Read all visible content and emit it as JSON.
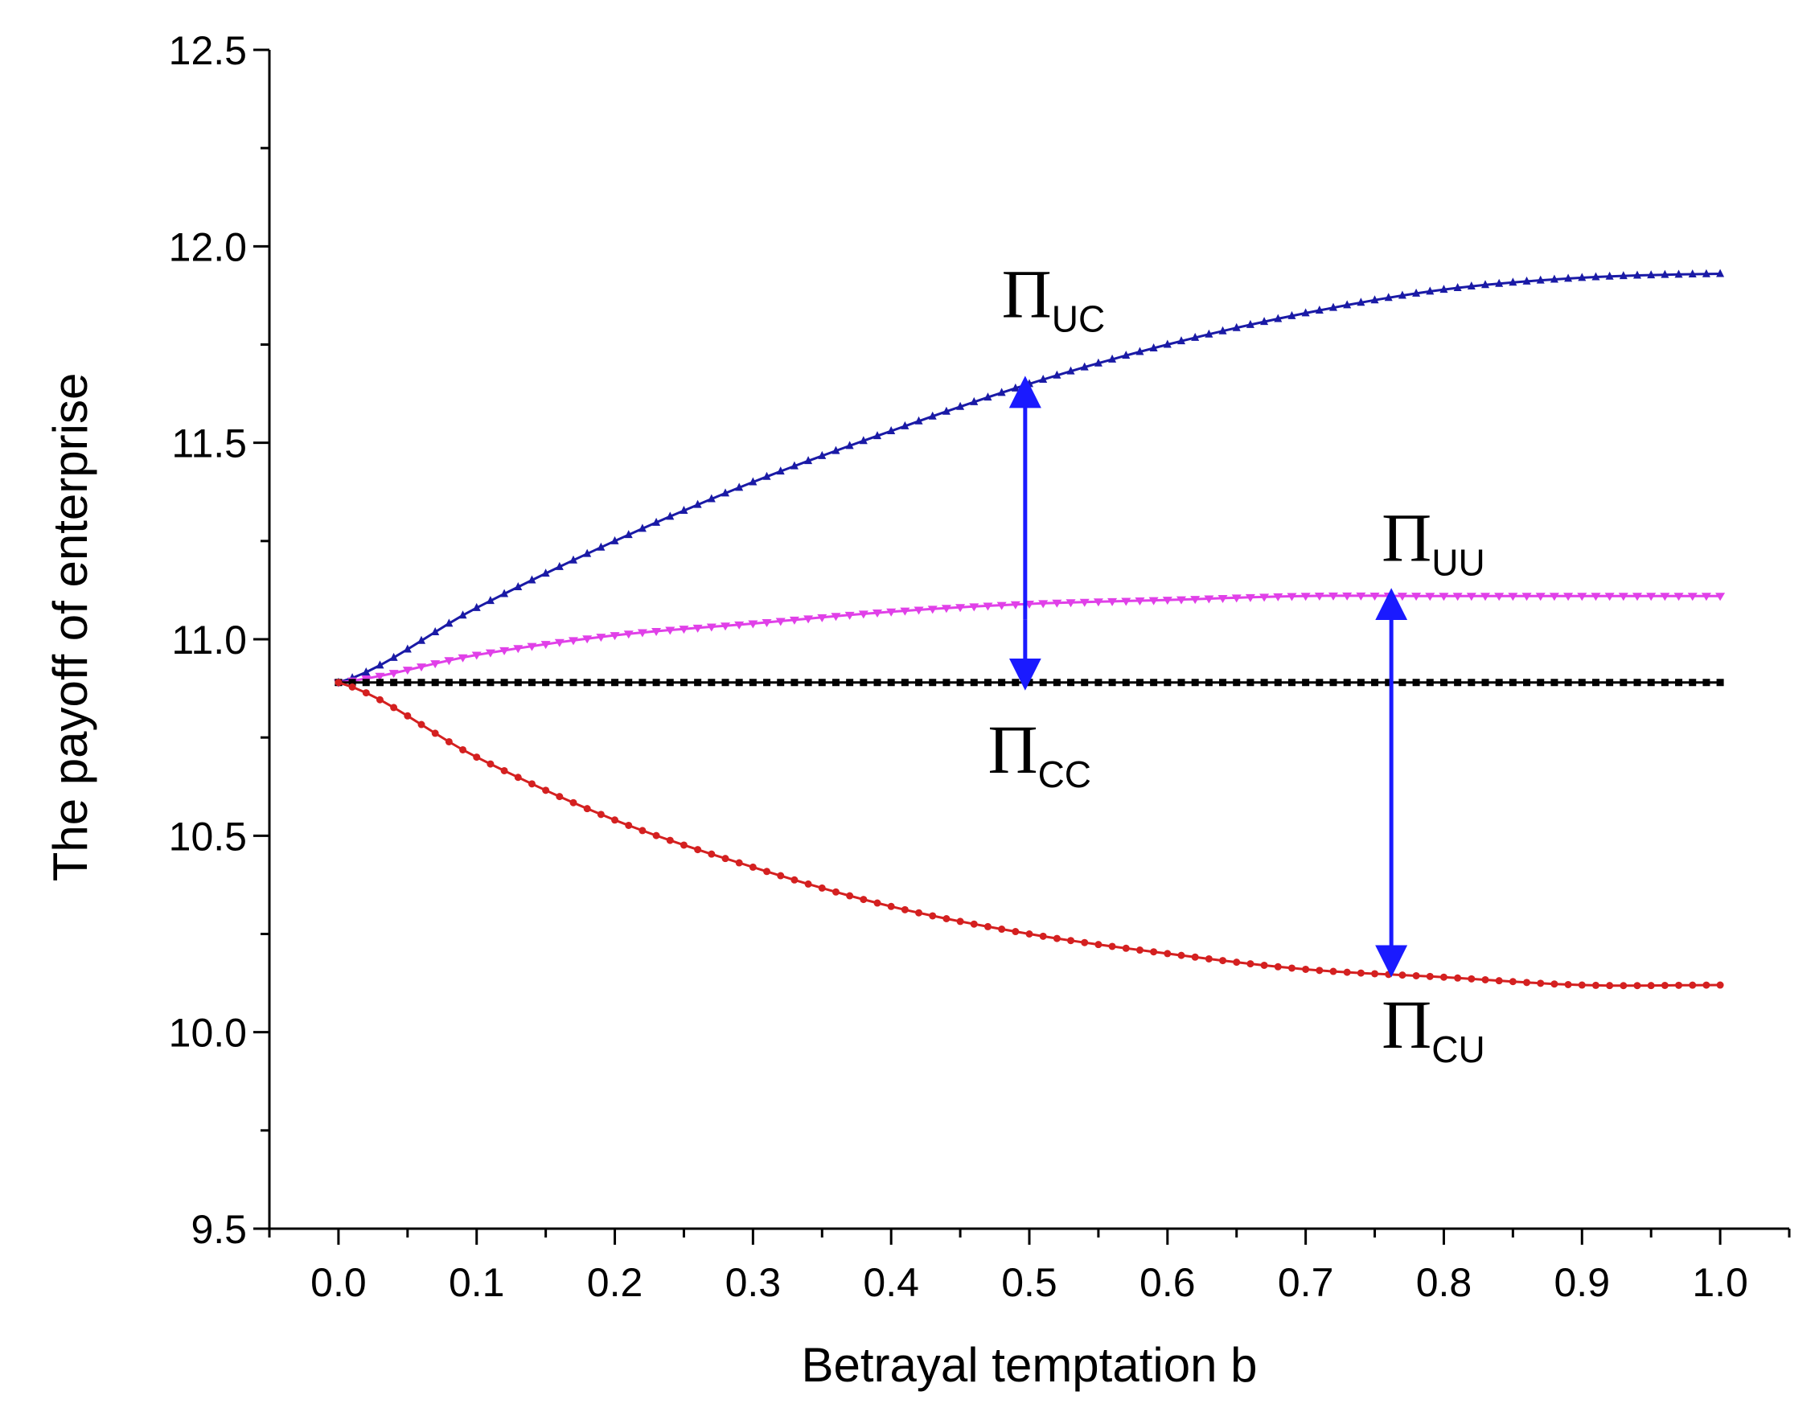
{
  "chart_data": {
    "type": "line",
    "title": "",
    "xlabel": "Betrayal temptation b",
    "ylabel": "The payoff of enterprise",
    "xlim": [
      -0.05,
      1.05
    ],
    "ylim": [
      9.5,
      12.5
    ],
    "xticks": [
      0.0,
      0.1,
      0.2,
      0.3,
      0.4,
      0.5,
      0.6,
      0.7,
      0.8,
      0.9,
      1.0
    ],
    "xtick_labels": [
      "0.0",
      "0.1",
      "0.2",
      "0.3",
      "0.4",
      "0.5",
      "0.6",
      "0.7",
      "0.8",
      "0.9",
      "1.0"
    ],
    "yticks": [
      9.5,
      10.0,
      10.5,
      11.0,
      11.5,
      12.0,
      12.5
    ],
    "ytick_labels": [
      "9.5",
      "10.0",
      "10.5",
      "11.0",
      "11.5",
      "12.0",
      "12.5"
    ],
    "grid": false,
    "x": [
      0.0,
      0.1,
      0.2,
      0.3,
      0.4,
      0.5,
      0.6,
      0.7,
      0.8,
      0.9,
      1.0
    ],
    "series": [
      {
        "key": "UC",
        "color": "#1a1aa6",
        "marker": "triangle-up",
        "values": [
          10.89,
          11.08,
          11.25,
          11.4,
          11.53,
          11.65,
          11.75,
          11.83,
          11.89,
          11.92,
          11.93
        ]
      },
      {
        "key": "UU",
        "color": "#e040e8",
        "marker": "triangle-down",
        "values": [
          10.89,
          10.96,
          11.01,
          11.04,
          11.07,
          11.09,
          11.1,
          11.11,
          11.11,
          11.11,
          11.11
        ]
      },
      {
        "key": "CC",
        "color": "#000000",
        "marker": "square",
        "values": [
          10.89,
          10.89,
          10.89,
          10.89,
          10.89,
          10.89,
          10.89,
          10.89,
          10.89,
          10.89,
          10.89
        ]
      },
      {
        "key": "CU",
        "color": "#d42020",
        "marker": "circle",
        "values": [
          10.89,
          10.7,
          10.54,
          10.42,
          10.32,
          10.25,
          10.2,
          10.16,
          10.14,
          10.12,
          10.12
        ]
      }
    ],
    "annotations": [
      {
        "key": "UC",
        "main": "Π",
        "sub": "UC",
        "x": 0.48,
        "y": 11.82
      },
      {
        "key": "UU",
        "main": "Π",
        "sub": "UU",
        "x": 0.755,
        "y": 11.2
      },
      {
        "key": "CC",
        "main": "Π",
        "sub": "CC",
        "x": 0.47,
        "y": 10.66
      },
      {
        "key": "CU",
        "main": "Π",
        "sub": "CU",
        "x": 0.755,
        "y": 9.96
      }
    ],
    "arrows": [
      {
        "x": 0.497,
        "y_from": 11.05,
        "y_to": 11.65,
        "color": "#1a1aff"
      },
      {
        "x": 0.497,
        "y_from": 11.05,
        "y_to": 10.89,
        "color": "#1a1aff"
      },
      {
        "x": 0.762,
        "y_from": 10.16,
        "y_to": 11.11,
        "color": "#1a1aff",
        "double": true
      }
    ]
  }
}
